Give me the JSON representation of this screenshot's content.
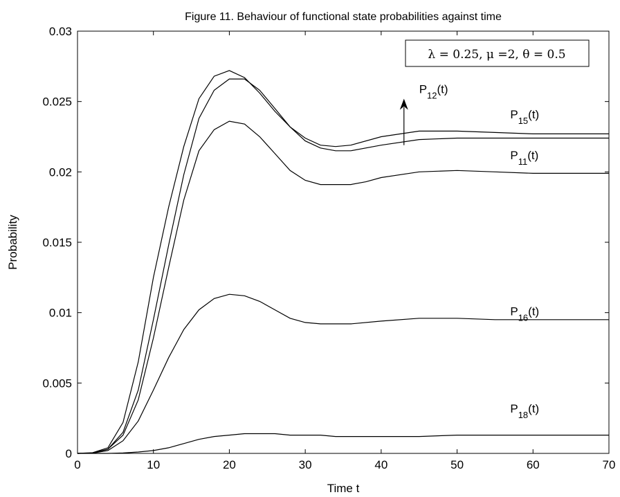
{
  "chart_data": {
    "type": "line",
    "title": "Figure 11. Behaviour of  functional state probabilities against time",
    "xlabel": "Time t",
    "ylabel": "Probability",
    "xlim": [
      0,
      70
    ],
    "ylim": [
      0,
      0.03
    ],
    "xticks": [
      "0",
      "10",
      "20",
      "30",
      "40",
      "50",
      "60",
      "70"
    ],
    "yticks": [
      "0",
      "0.005",
      "0.01",
      "0.015",
      "0.02",
      "0.025",
      "0.03"
    ],
    "grid": false,
    "legend_box": "λ = 0.25, μ =2, θ = 0.5",
    "legend_placement": "top-right",
    "series": [
      {
        "name": "P15(t)",
        "x": [
          0,
          2,
          4,
          6,
          8,
          10,
          12,
          14,
          16,
          18,
          20,
          22,
          24,
          26,
          28,
          30,
          32,
          34,
          36,
          40,
          45,
          50,
          55,
          60,
          65,
          70
        ],
        "values": [
          0,
          5e-05,
          0.0004,
          0.0022,
          0.0065,
          0.0125,
          0.0175,
          0.0218,
          0.0252,
          0.0268,
          0.0272,
          0.0267,
          0.0256,
          0.0243,
          0.0232,
          0.0224,
          0.0219,
          0.0218,
          0.0219,
          0.0225,
          0.0229,
          0.0229,
          0.0228,
          0.0227,
          0.0227,
          0.0227
        ]
      },
      {
        "name": "P12(t)",
        "x": [
          0,
          2,
          4,
          6,
          8,
          10,
          12,
          14,
          16,
          18,
          20,
          22,
          24,
          26,
          28,
          30,
          32,
          34,
          36,
          40,
          45,
          50,
          55,
          60,
          65,
          70
        ],
        "values": [
          0,
          3e-05,
          0.0003,
          0.0015,
          0.0045,
          0.0095,
          0.0148,
          0.0198,
          0.0238,
          0.0258,
          0.0266,
          0.0266,
          0.0258,
          0.0245,
          0.0232,
          0.0222,
          0.0217,
          0.0215,
          0.0215,
          0.0219,
          0.0223,
          0.0224,
          0.0224,
          0.0224,
          0.0224,
          0.0224
        ]
      },
      {
        "name": "P11(t)",
        "x": [
          0,
          2,
          4,
          6,
          8,
          10,
          12,
          14,
          16,
          18,
          20,
          22,
          24,
          26,
          28,
          30,
          32,
          34,
          36,
          38,
          40,
          45,
          50,
          55,
          60,
          65,
          70
        ],
        "values": [
          0,
          3e-05,
          0.0003,
          0.0013,
          0.0038,
          0.0082,
          0.0132,
          0.018,
          0.0215,
          0.023,
          0.0236,
          0.0234,
          0.0225,
          0.0213,
          0.0201,
          0.0194,
          0.0191,
          0.0191,
          0.0191,
          0.0193,
          0.0196,
          0.02,
          0.0201,
          0.02,
          0.0199,
          0.0199,
          0.0199
        ]
      },
      {
        "name": "P16(t)",
        "x": [
          0,
          2,
          4,
          6,
          8,
          10,
          12,
          14,
          16,
          18,
          20,
          22,
          24,
          26,
          28,
          30,
          32,
          34,
          36,
          40,
          45,
          50,
          55,
          60,
          65,
          70
        ],
        "values": [
          0,
          2e-05,
          0.0002,
          0.0009,
          0.0023,
          0.0045,
          0.0068,
          0.0088,
          0.0102,
          0.011,
          0.0113,
          0.0112,
          0.0108,
          0.0102,
          0.0096,
          0.0093,
          0.0092,
          0.0092,
          0.0092,
          0.0094,
          0.0096,
          0.0096,
          0.0095,
          0.0095,
          0.0095,
          0.0095
        ]
      },
      {
        "name": "P18(t)",
        "x": [
          0,
          4,
          6,
          8,
          10,
          12,
          14,
          16,
          18,
          20,
          22,
          24,
          26,
          28,
          30,
          32,
          34,
          36,
          40,
          45,
          50,
          55,
          60,
          65,
          70
        ],
        "values": [
          0,
          0,
          3e-05,
          0.0001,
          0.0002,
          0.0004,
          0.0007,
          0.001,
          0.0012,
          0.0013,
          0.0014,
          0.0014,
          0.0014,
          0.0013,
          0.0013,
          0.0013,
          0.0012,
          0.0012,
          0.0012,
          0.0012,
          0.0013,
          0.0013,
          0.0013,
          0.0013,
          0.0013
        ]
      }
    ],
    "annotations": [
      {
        "base": "P",
        "sub": "12",
        "suffix": "(t)",
        "x": 45,
        "y": 0.0256
      },
      {
        "base": "P",
        "sub": "15",
        "suffix": "(t)",
        "x": 57,
        "y": 0.0238
      },
      {
        "base": "P",
        "sub": "11",
        "suffix": "(t)",
        "x": 57,
        "y": 0.0209
      },
      {
        "base": "P",
        "sub": "16",
        "suffix": "(t)",
        "x": 57,
        "y": 0.0098
      },
      {
        "base": "P",
        "sub": "18",
        "suffix": "(t)",
        "x": 57,
        "y": 0.0029
      }
    ],
    "arrow": {
      "x": 43,
      "y_from": 0.0219,
      "y_to": 0.0252
    }
  }
}
